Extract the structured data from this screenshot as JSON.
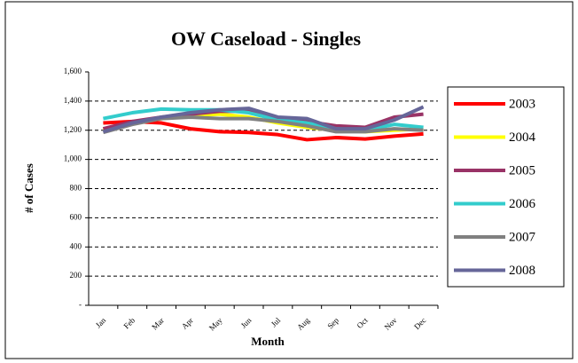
{
  "chart_data": {
    "type": "line",
    "title": "OW Caseload - Singles",
    "x_label": "Month",
    "y_label": "# of Cases",
    "categories": [
      "Jan",
      "Feb",
      "Mar",
      "Apr",
      "May",
      "Jun",
      "Jul",
      "Aug",
      "Sep",
      "Oct",
      "Nov",
      "Dec"
    ],
    "series": [
      {
        "name": "2003",
        "color": "#ff0000",
        "values": [
          1250,
          1260,
          1250,
          1210,
          1190,
          1185,
          1170,
          1135,
          1150,
          1140,
          1160,
          1175
        ]
      },
      {
        "name": "2004",
        "color": "#ffff00",
        "values": [
          1200,
          1250,
          1280,
          1300,
          1310,
          1290,
          1250,
          1220,
          1200,
          1190,
          1200,
          1210
        ]
      },
      {
        "name": "2005",
        "color": "#993366",
        "values": [
          1210,
          1260,
          1290,
          1310,
          1330,
          1330,
          1280,
          1260,
          1230,
          1220,
          1290,
          1310
        ]
      },
      {
        "name": "2006",
        "color": "#33cccc",
        "values": [
          1280,
          1320,
          1345,
          1340,
          1340,
          1320,
          1270,
          1250,
          1210,
          1200,
          1240,
          1220
        ]
      },
      {
        "name": "2007",
        "color": "#808080",
        "values": [
          1185,
          1240,
          1280,
          1290,
          1280,
          1280,
          1260,
          1230,
          1190,
          1190,
          1210,
          1200
        ]
      },
      {
        "name": "2008",
        "color": "#666699",
        "values": [
          1190,
          1250,
          1290,
          1320,
          1340,
          1350,
          1290,
          1280,
          1210,
          1210,
          1270,
          1360
        ]
      }
    ],
    "ylim": [
      0,
      1600
    ],
    "yticks": [
      {
        "value": 0,
        "label": "-"
      },
      200,
      400,
      600,
      800,
      {
        "value": 1000,
        "label": "1,000"
      },
      {
        "value": 1200,
        "label": "1,200"
      },
      {
        "value": 1400,
        "label": "1,400"
      },
      {
        "value": 1600,
        "label": "1,600"
      }
    ],
    "grid": true
  }
}
